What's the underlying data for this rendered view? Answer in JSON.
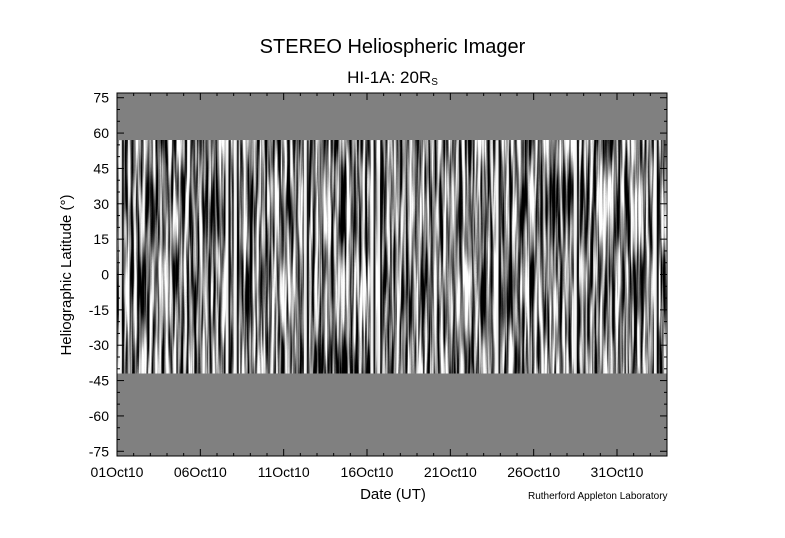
{
  "chart_data": {
    "type": "heatmap",
    "title": "STEREO Heliospheric Imager",
    "subtitle_main": "HI-1A: 20R",
    "subtitle_sub": "S",
    "xlabel": "Date (UT)",
    "ylabel": "Heliographic Latitude (°)",
    "x_range_days": [
      0,
      33
    ],
    "x_ticks": [
      {
        "day": 0,
        "label": "01Oct10"
      },
      {
        "day": 5,
        "label": "06Oct10"
      },
      {
        "day": 10,
        "label": "11Oct10"
      },
      {
        "day": 15,
        "label": "16Oct10"
      },
      {
        "day": 20,
        "label": "21Oct10"
      },
      {
        "day": 25,
        "label": "26Oct10"
      },
      {
        "day": 30,
        "label": "31Oct10"
      }
    ],
    "ylim": [
      -77,
      77
    ],
    "y_ticks": [
      75,
      60,
      45,
      30,
      15,
      0,
      -15,
      -30,
      -45,
      -60,
      -75
    ],
    "data_band_latitude": [
      -42,
      57
    ],
    "fill_color": "#808080",
    "colormap": "grayscale",
    "bright_features_days": [
      0.2,
      6.6,
      7.1,
      11.3,
      15.3,
      15.7,
      22.8,
      27.5,
      32.3
    ]
  },
  "credit": "Rutherford Appleton Laboratory"
}
